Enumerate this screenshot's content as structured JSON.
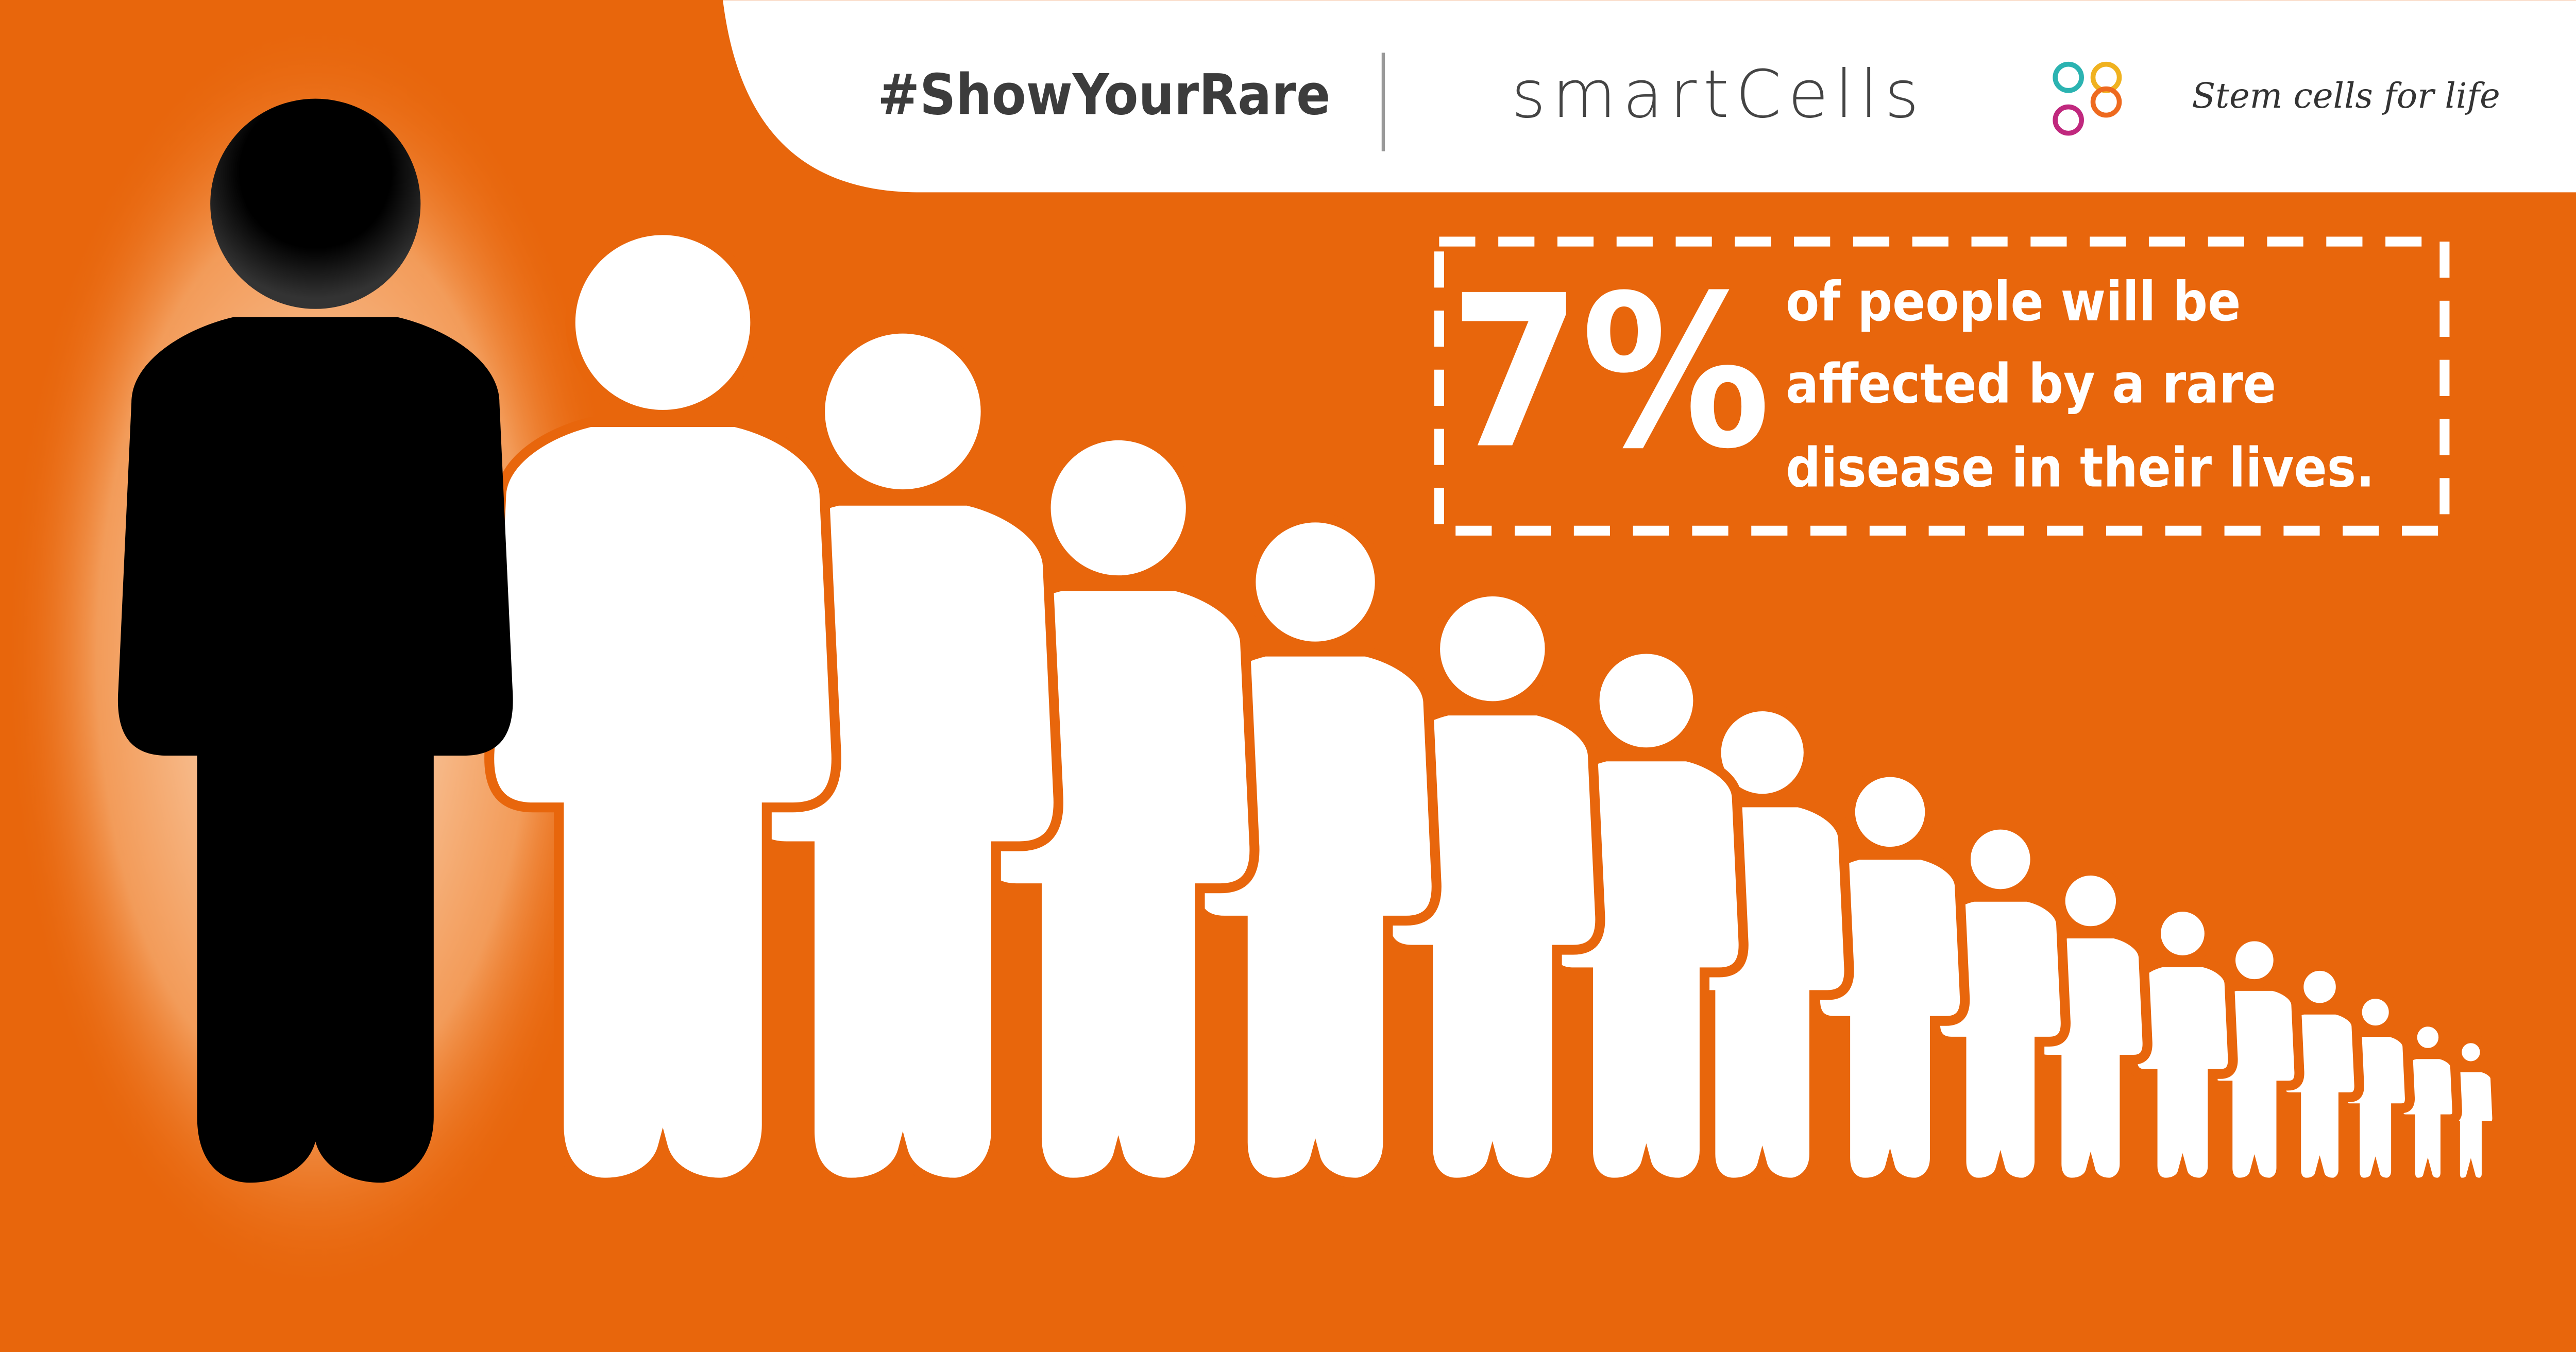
{
  "header": {
    "hashtag": "#ShowYourRare",
    "brand": "smartCells",
    "tagline": "Stem cells for life"
  },
  "stat": {
    "value": "7%",
    "lines": [
      "of people will be",
      "affected by a rare",
      "disease in their lives."
    ]
  }
}
